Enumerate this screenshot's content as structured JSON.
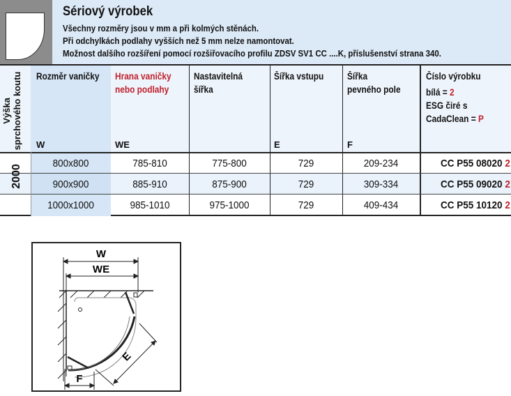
{
  "header": {
    "title": "Sériový výrobek",
    "notes": [
      "Všechny rozměry jsou v mm a při kolmých stěnách.",
      "Při odchylkách podlahy vyšších než 5 mm nelze namontovat.",
      "Možnost dalšího rozšíření pomocí rozšiřovacího profilu ZDSV SV1 CC ....K, příslušenství strana 340."
    ]
  },
  "table": {
    "height_label_1": "Výška",
    "height_label_2": "sprchového koutu",
    "columns": [
      {
        "label1": "Rozměr vaničky",
        "label2": "",
        "symbol": "W"
      },
      {
        "label1": "Hrana vaničky",
        "label2": "nebo podlahy",
        "symbol": "WE"
      },
      {
        "label1": "Nastavitelná",
        "label2": "šířka",
        "symbol": ""
      },
      {
        "label1": "Šířka vstupu",
        "label2": "",
        "symbol": "E"
      },
      {
        "label1": "Šířka",
        "label2": "pevného pole",
        "symbol": "F"
      },
      {
        "label1": "Číslo výrobku",
        "label2": "",
        "symbol": ""
      }
    ],
    "product_legend": {
      "white": "bílá = ",
      "white_code": "2",
      "glass1": "ESG čiré s",
      "glass2": "CadaClean = ",
      "glass_code": "P"
    },
    "height_value": "2000",
    "rows": [
      {
        "size": "800x800",
        "we": "785-810",
        "adjust": "775-800",
        "e": "729",
        "f": "209-234",
        "code": "CC P55 08020",
        "suffix": "2"
      },
      {
        "size": "900x900",
        "we": "885-910",
        "adjust": "875-900",
        "e": "729",
        "f": "309-334",
        "code": "CC P55 09020",
        "suffix": "2"
      },
      {
        "size": "1000x1000",
        "we": "985-1010",
        "adjust": "975-1000",
        "e": "729",
        "f": "409-434",
        "code": "CC P55 10120",
        "suffix": "2"
      }
    ]
  },
  "diagram": {
    "w": "W",
    "we": "WE",
    "e": "E",
    "f": "F"
  },
  "colors": {
    "accent_red": "#c0212d",
    "header_blue": "#dce9f6"
  }
}
